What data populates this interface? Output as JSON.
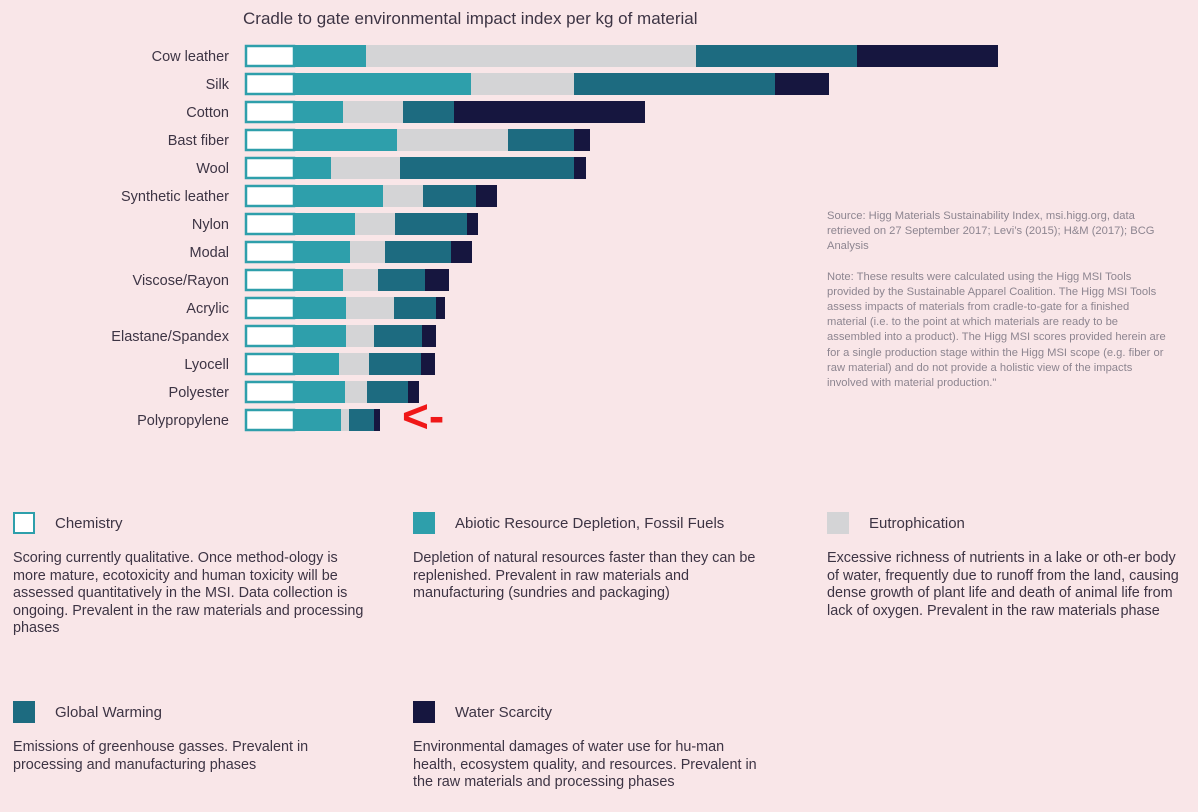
{
  "chart_data": {
    "type": "bar",
    "orientation": "horizontal",
    "stacked": true,
    "title": "Cradle to gate environmental impact index per kg of material",
    "categories": [
      "Cow leather",
      "Silk",
      "Cotton",
      "Bast fiber",
      "Wool",
      "Synthetic leather",
      "Nylon",
      "Modal",
      "Viscose/Rayon",
      "Acrylic",
      "Elastane/Spandex",
      "Lyocell",
      "Polyester",
      "Polypropylene"
    ],
    "series": [
      {
        "name": "Chemistry",
        "color": "#ffffff",
        "values": [
          50,
          50,
          50,
          50,
          50,
          50,
          50,
          50,
          50,
          50,
          50,
          50,
          50,
          50
        ]
      },
      {
        "name": "Abiotic Resource Depletion, Fossil Fuels",
        "color": "#2e9fab",
        "values": [
          71,
          176,
          48,
          102,
          36,
          88,
          60,
          55,
          48,
          51,
          51,
          44,
          50,
          46
        ]
      },
      {
        "name": "Eutrophication",
        "color": "#d4d4d6",
        "values": [
          330,
          103,
          60,
          111,
          69,
          40,
          40,
          35,
          35,
          48,
          28,
          30,
          22,
          8
        ]
      },
      {
        "name": "Global Warming",
        "color": "#1d6b80",
        "values": [
          161,
          201,
          51,
          66,
          174,
          53,
          72,
          66,
          47,
          42,
          48,
          52,
          41,
          25
        ]
      },
      {
        "name": "Water Scarcity",
        "color": "#16163f",
        "values": [
          141,
          54,
          191,
          16,
          12,
          21,
          11,
          21,
          24,
          9,
          14,
          14,
          11,
          6
        ]
      }
    ],
    "xlim": [
      0,
      760
    ],
    "grid": false,
    "legend_position": "bottom"
  },
  "annotation": {
    "text": "<-",
    "color": "#f01818"
  },
  "notes": {
    "source": "Source: Higg Materials Sustainability Index, msi.higg.org, data retrieved on 27 September 2017; Levi’s (2015); H&M (2017); BCG Analysis",
    "note": "Note: These results were calculated using the Higg MSI Tools provided by the Sustainable Apparel Coalition. The Higg MSI Tools assess impacts of materials from cradle-to-gate for a finished material (i.e. to the point at which materials are ready to be assembled into a product). The Higg MSI scores provided herein are for a single production stage within the Higg MSI scope (e.g. fiber or raw material) and do not provide a holistic view of the impacts involved with material production.\""
  },
  "legend": [
    {
      "name": "Chemistry",
      "color": "#ffffff",
      "outline": "#2e9fab",
      "description": "Scoring currently qualitative. Once method-ology is more mature, ecotoxicity and human toxicity will be assessed quantitatively in the MSI. Data collection is ongoing. Prevalent in the raw materials and processing phases"
    },
    {
      "name": "Abiotic Resource Depletion, Fossil Fuels",
      "color": "#2e9fab",
      "description": "Depletion of natural resources faster than they can be replenished. Prevalent in raw materials and manufacturing (sundries and packaging)"
    },
    {
      "name": "Eutrophication",
      "color": "#d4d4d6",
      "description": "Excessive richness of nutrients in a lake or oth-er body of water, frequently due to runoff from the land, causing dense growth of plant life and death of animal life from lack of oxygen. Prevalent in the raw materials phase"
    },
    {
      "name": "Global Warming",
      "color": "#1d6b80",
      "description": "Emissions of greenhouse gasses. Prevalent in processing and manufacturing phases"
    },
    {
      "name": "Water Scarcity",
      "color": "#16163f",
      "description": "Environmental damages of water use for hu-man health, ecosystem quality, and resources. Prevalent in the raw materials and processing phases"
    }
  ]
}
